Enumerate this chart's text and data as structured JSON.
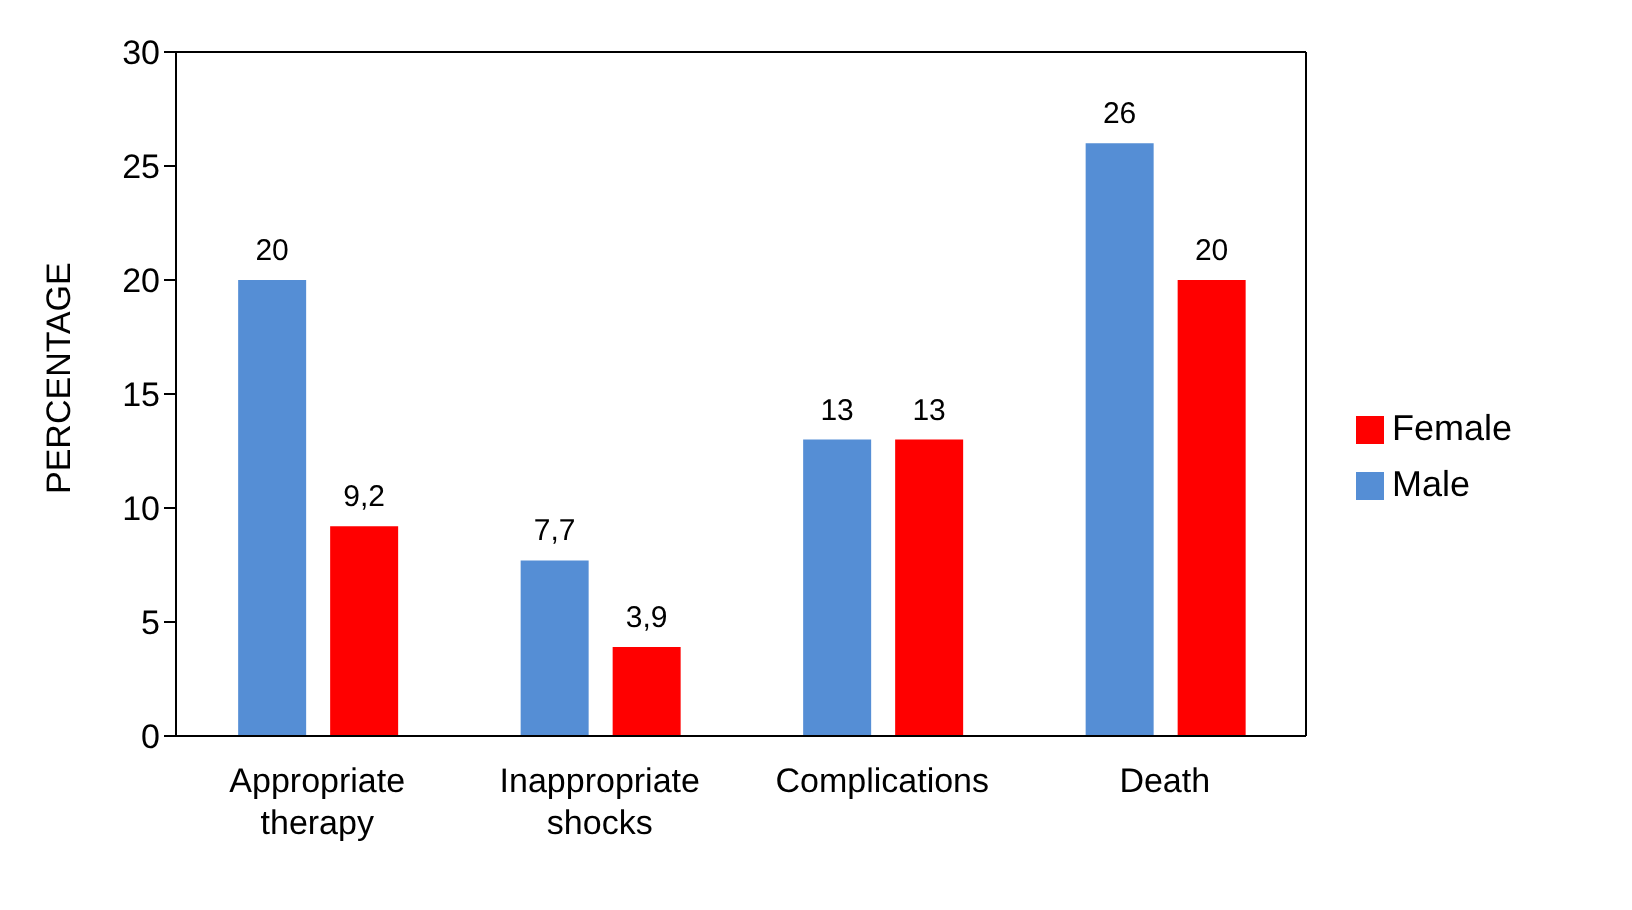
{
  "chart_data": {
    "type": "bar",
    "ylabel": "PERCENTAGE",
    "categories": [
      "Appropriate therapy",
      "Inappropriate shocks",
      "Complications",
      "Death"
    ],
    "series": [
      {
        "name": "Male",
        "color": "#558ed5",
        "values": [
          20,
          7.7,
          13,
          26
        ],
        "value_labels": [
          "20",
          "7,7",
          "13",
          "26"
        ]
      },
      {
        "name": "Female",
        "color": "#ff0000",
        "values": [
          9.2,
          3.9,
          13,
          20
        ],
        "value_labels": [
          "9,2",
          "3,9",
          "13",
          "20"
        ]
      }
    ],
    "ylim": [
      0,
      30
    ],
    "yticks": [
      0,
      5,
      10,
      15,
      20,
      25,
      30
    ],
    "grid": false,
    "legend": "right"
  }
}
